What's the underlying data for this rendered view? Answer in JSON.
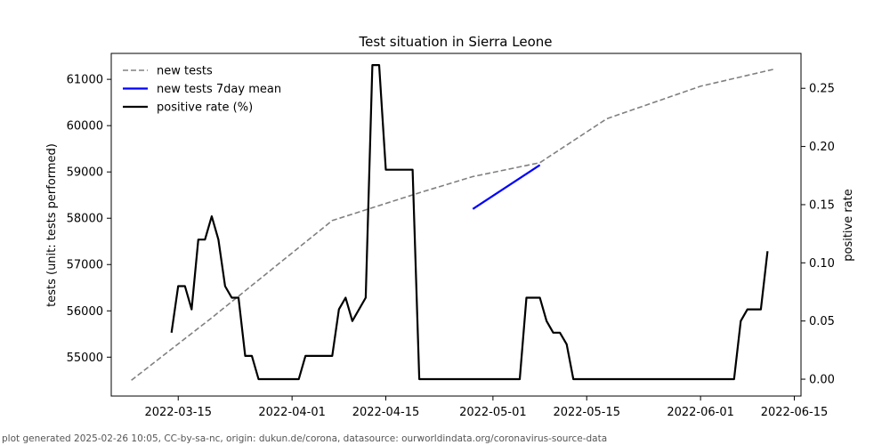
{
  "chart_data": {
    "type": "line",
    "title": "Test situation in Sierra Leone",
    "ylabel": "tests (unit: tests performed)",
    "y2label": "positive rate",
    "xlim": [
      "2022-03-05",
      "2022-06-16"
    ],
    "ylim": [
      54160,
      61560
    ],
    "y2lim": [
      -0.0145,
      0.28
    ],
    "x_ticks": [
      "2022-03-15",
      "2022-04-01",
      "2022-04-15",
      "2022-05-01",
      "2022-05-15",
      "2022-06-01",
      "2022-06-15"
    ],
    "y_ticks": [
      55000,
      56000,
      57000,
      58000,
      59000,
      60000,
      61000
    ],
    "y2_ticks": [
      0.0,
      0.05,
      0.1,
      0.15,
      0.2,
      0.25
    ],
    "y2_tick_labels": [
      "0.00",
      "0.05",
      "0.10",
      "0.15",
      "0.20",
      "0.25"
    ],
    "legend_position": "upper-left",
    "series": [
      {
        "name": "new tests",
        "axis": "left",
        "style": "dashed",
        "color": "#808080",
        "points": [
          [
            "2022-03-08",
            54500
          ],
          [
            "2022-03-20",
            55850
          ],
          [
            "2022-04-07",
            57950
          ],
          [
            "2022-04-20",
            58550
          ],
          [
            "2022-04-28",
            58900
          ],
          [
            "2022-05-08",
            59200
          ],
          [
            "2022-05-18",
            60150
          ],
          [
            "2022-06-01",
            60850
          ],
          [
            "2022-06-12",
            61220
          ]
        ]
      },
      {
        "name": "new tests 7day mean",
        "axis": "left",
        "style": "solid",
        "color": "#0000ff",
        "points": [
          [
            "2022-04-28",
            58200
          ],
          [
            "2022-05-08",
            59150
          ]
        ]
      },
      {
        "name": "positive rate (%)",
        "axis": "right",
        "style": "solid",
        "color": "#000000",
        "points": [
          [
            "2022-03-14",
            0.04
          ],
          [
            "2022-03-15",
            0.08
          ],
          [
            "2022-03-16",
            0.08
          ],
          [
            "2022-03-17",
            0.06
          ],
          [
            "2022-03-18",
            0.12
          ],
          [
            "2022-03-19",
            0.12
          ],
          [
            "2022-03-20",
            0.14
          ],
          [
            "2022-03-21",
            0.12
          ],
          [
            "2022-03-22",
            0.08
          ],
          [
            "2022-03-23",
            0.07
          ],
          [
            "2022-03-24",
            0.07
          ],
          [
            "2022-03-25",
            0.02
          ],
          [
            "2022-03-26",
            0.02
          ],
          [
            "2022-03-27",
            0.0
          ],
          [
            "2022-04-02",
            0.0
          ],
          [
            "2022-04-03",
            0.02
          ],
          [
            "2022-04-07",
            0.02
          ],
          [
            "2022-04-08",
            0.06
          ],
          [
            "2022-04-09",
            0.07
          ],
          [
            "2022-04-10",
            0.05
          ],
          [
            "2022-04-12",
            0.07
          ],
          [
            "2022-04-13",
            0.27
          ],
          [
            "2022-04-14",
            0.27
          ],
          [
            "2022-04-15",
            0.18
          ],
          [
            "2022-04-19",
            0.18
          ],
          [
            "2022-04-20",
            0.0
          ],
          [
            "2022-05-05",
            0.0
          ],
          [
            "2022-05-06",
            0.07
          ],
          [
            "2022-05-08",
            0.07
          ],
          [
            "2022-05-09",
            0.05
          ],
          [
            "2022-05-10",
            0.04
          ],
          [
            "2022-05-11",
            0.04
          ],
          [
            "2022-05-12",
            0.03
          ],
          [
            "2022-05-13",
            0.0
          ],
          [
            "2022-06-06",
            0.0
          ],
          [
            "2022-06-07",
            0.05
          ],
          [
            "2022-06-08",
            0.06
          ],
          [
            "2022-06-10",
            0.06
          ],
          [
            "2022-06-11",
            0.11
          ]
        ]
      }
    ]
  },
  "footer": "plot generated 2025-02-26 10:05, CC-by-sa-nc, origin: dukun.de/corona, datasource: ourworldindata.org/coronavirus-source-data"
}
